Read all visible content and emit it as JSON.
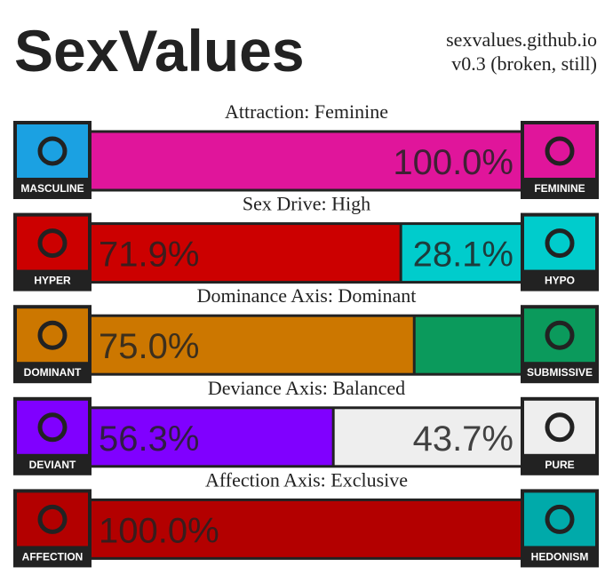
{
  "header": {
    "title": "SexValues",
    "site": "sexvalues.github.io",
    "version": "v0.3 (broken, still)"
  },
  "axes": [
    {
      "title": "Attraction: Feminine",
      "left": "MASCULINE",
      "right": "FEMININE",
      "values": [
        0,
        100
      ],
      "value_labels": [
        null,
        "100.0%"
      ],
      "colors": [
        "#1ba1e2",
        "#e0159b"
      ]
    },
    {
      "title": "Sex Drive: High",
      "left": "HYPER",
      "right": "HYPO",
      "values": [
        71.9,
        28.1
      ],
      "value_labels": [
        "71.9%",
        "28.1%"
      ],
      "colors": [
        "#cc0000",
        "#00cccc"
      ]
    },
    {
      "title": "Dominance Axis: Dominant",
      "left": "DOMINANT",
      "right": "SUBMISSIVE",
      "values": [
        75.0,
        25.0
      ],
      "value_labels": [
        "75.0%",
        null
      ],
      "colors": [
        "#cc7700",
        "#0b9a5c"
      ]
    },
    {
      "title": "Deviance Axis: Balanced",
      "left": "DEVIANT",
      "right": "PURE",
      "values": [
        56.3,
        43.7
      ],
      "value_labels": [
        "56.3%",
        "43.7%"
      ],
      "colors": [
        "#8000ff",
        "#eeeeee"
      ]
    },
    {
      "title": "Affection Axis: Exclusive",
      "left": "AFFECTION",
      "right": "HEDONISM",
      "values": [
        100,
        0
      ],
      "value_labels": [
        "100.0%",
        null
      ],
      "colors": [
        "#b30000",
        "#00aaaa"
      ]
    }
  ]
}
